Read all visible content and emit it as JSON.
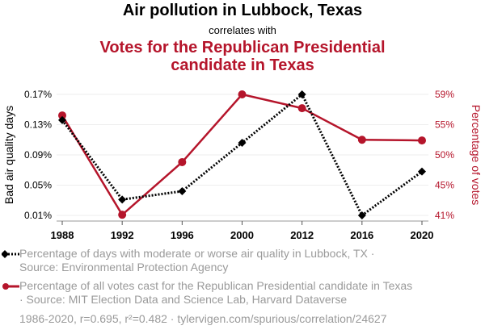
{
  "title": "Air pollution in Lubbock, Texas",
  "subtitle": "correlates with",
  "title2_line1": "Votes for the Republican Presidential",
  "title2_line2": "candidate in Texas",
  "legend": {
    "series1_line1": "Percentage of days with moderate or worse air quality in Lubbock, TX ·",
    "series1_line2": "Source: Environmental Protection Agency",
    "series2_line1": "Percentage of all votes cast for the Republican Presidential candidate in Texas",
    "series2_line2": "· Source: MIT Election Data and Science Lab, Harvard Dataverse"
  },
  "footer": "1986-2020, r=0.695, r²=0.482 · tylervigen.com/spurious/correlation/24627",
  "colors": {
    "series1": "#000000",
    "series2": "#b5152b",
    "grid": "#eeeeee",
    "axis": "#999999"
  },
  "chart_data": {
    "type": "line",
    "title": "Air pollution in Lubbock, Texas correlates with Votes for the Republican Presidential candidate in Texas",
    "x": [
      "1988",
      "1992",
      "1996",
      "2000",
      "2012",
      "2016",
      "2020"
    ],
    "xlabel": "",
    "ylabel_left": "Bad air quality days",
    "ylabel_right": "Percentage of votes",
    "yticks_left": [
      "0.01%",
      "0.05%",
      "0.09%",
      "0.13%",
      "0.17%"
    ],
    "yticks_right": [
      "41%",
      "45%",
      "50%",
      "55%",
      "59%"
    ],
    "ylim_left": [
      0.01,
      0.17
    ],
    "ylim_right": [
      40.8,
      59.2
    ],
    "yticks_left_values": [
      0.01,
      0.05,
      0.09,
      0.13,
      0.17
    ],
    "yticks_right_values": [
      40.8,
      45.4,
      50.0,
      54.6,
      59.2
    ],
    "grid": true,
    "legend_position": "bottom",
    "series": [
      {
        "name": "Percentage of days with moderate or worse air quality in Lubbock, TX",
        "axis": "left",
        "style": "dotted",
        "marker": "diamond",
        "color": "#000000",
        "values": [
          0.136,
          0.031,
          0.042,
          0.106,
          0.17,
          0.01,
          0.068
        ]
      },
      {
        "name": "Percentage of all votes cast for the Republican Presidential candidate in Texas",
        "axis": "right",
        "style": "solid",
        "marker": "circle",
        "color": "#b5152b",
        "values": [
          56.0,
          40.9,
          48.9,
          59.2,
          57.1,
          52.3,
          52.2
        ]
      }
    ]
  }
}
